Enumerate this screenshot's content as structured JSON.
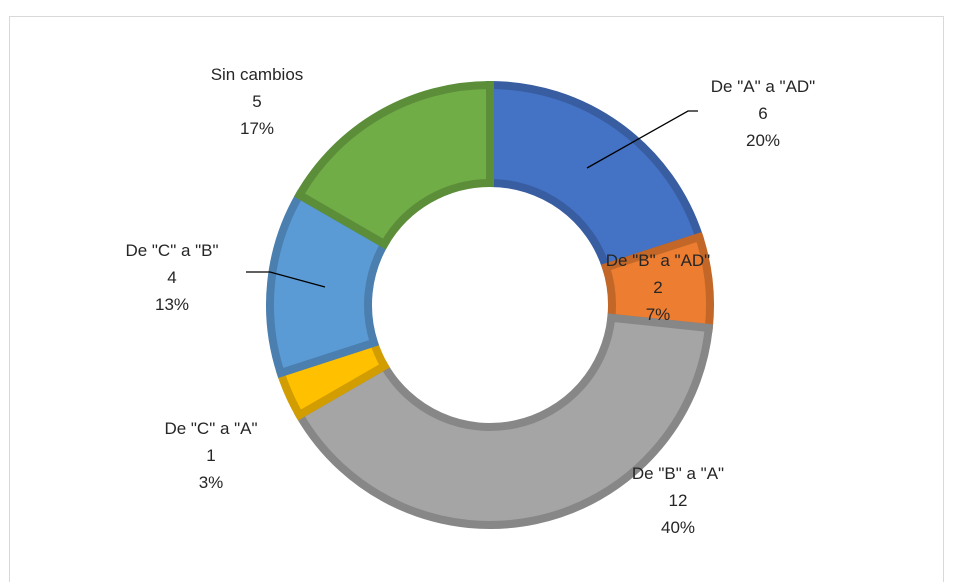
{
  "chart_data": {
    "type": "pie",
    "variant": "doughnut",
    "title": "",
    "legend": "none",
    "series": [
      {
        "values": [
          6,
          2,
          12,
          1,
          4,
          5
        ],
        "categories": [
          "De \"A\" a \"AD\"",
          "De \"B\" a \"AD\"",
          "De \"B\" a \"A\"",
          "De \"C\" a \"A\"",
          "De \"C\" a \"B\"",
          "Sin cambios"
        ],
        "percent_labels": [
          "20%",
          "7%",
          "40%",
          "3%",
          "13%",
          "17%"
        ],
        "colors": [
          "#4472c4",
          "#ed7d31",
          "#a5a5a5",
          "#ffc000",
          "#5b9bd5",
          "#70ad47"
        ]
      }
    ]
  }
}
